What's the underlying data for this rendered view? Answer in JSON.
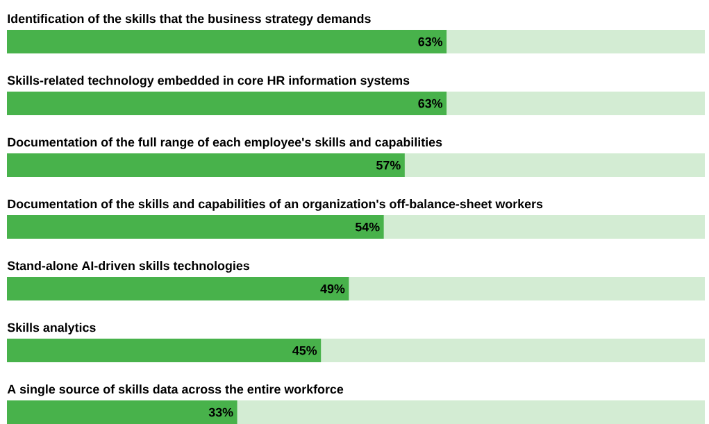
{
  "chart_data": {
    "type": "bar",
    "orientation": "horizontal",
    "stacked": true,
    "tick_labels": "y",
    "categories": [
      "Identification of the skills that the business strategy demands",
      "Skills-related technology embedded in core HR information systems",
      "Documentation of the full range of each employee's skills and capabilities",
      "Documentation of the skills and capabilities of an organization's off-balance-sheet workers",
      "Stand-alone AI-driven skills technologies",
      "Skills analytics",
      "A single source of skills data across the entire workforce"
    ],
    "series": [
      {
        "color": "#48b24b",
        "values": [
          63,
          63,
          57,
          54,
          49,
          45,
          33
        ],
        "value_labels": [
          "63%",
          "63%",
          "57%",
          "54%",
          "49%",
          "45%",
          "33%"
        ]
      },
      {
        "color": "#d3ecd3",
        "values": [
          37,
          37,
          43,
          46,
          51,
          55,
          67
        ]
      }
    ]
  }
}
